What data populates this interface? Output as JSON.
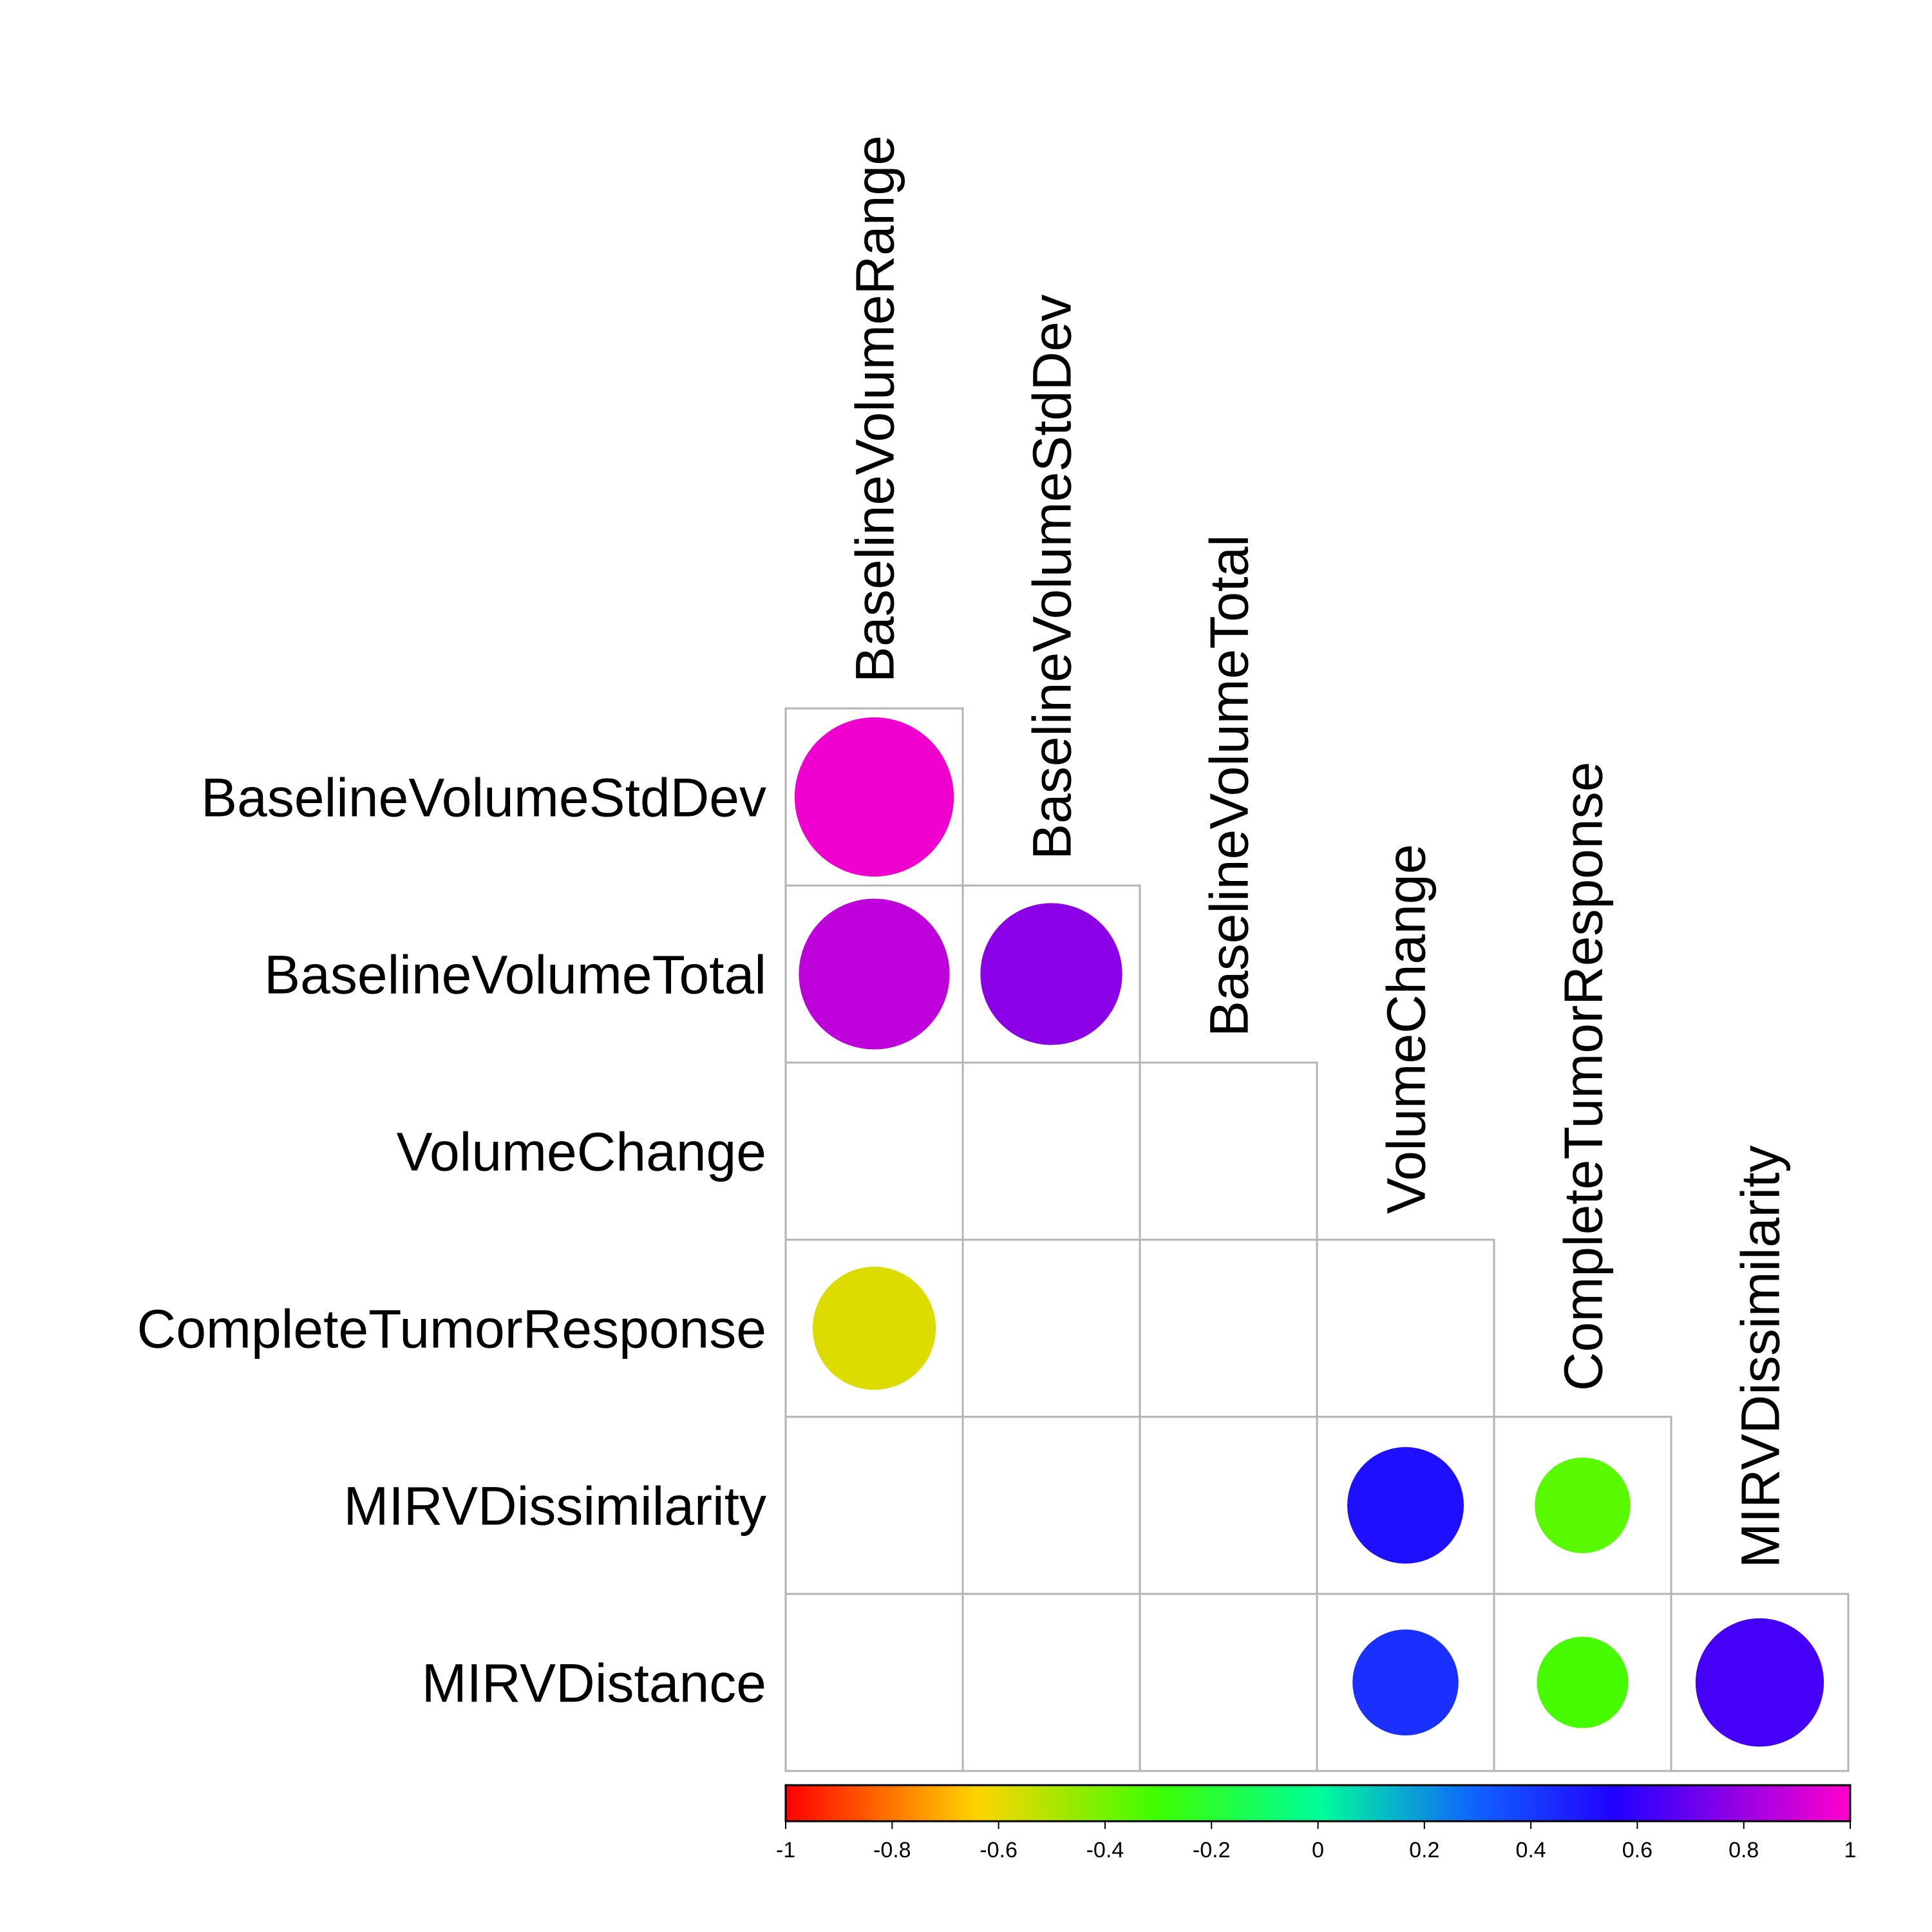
{
  "chart_data": {
    "type": "heatmap",
    "subtype": "correlation-lower-triangle-circles",
    "title": "",
    "column_labels": [
      "BaselineVolumeRange",
      "BaselineVolumeStdDev",
      "BaselineVolumeTotal",
      "VolumeChange",
      "CompleteTumorResponse",
      "MIRVDissimilarity"
    ],
    "row_labels": [
      "BaselineVolumeStdDev",
      "BaselineVolumeTotal",
      "VolumeChange",
      "CompleteTumorResponse",
      "MIRVDissimilarity",
      "MIRVDistance"
    ],
    "values": [
      [
        0.97,
        null,
        null,
        null,
        null,
        null
      ],
      [
        0.87,
        0.77,
        null,
        null,
        null,
        null
      ],
      [
        null,
        null,
        null,
        null,
        null,
        null
      ],
      [
        -0.58,
        null,
        null,
        null,
        null,
        null
      ],
      [
        null,
        null,
        null,
        0.52,
        -0.35,
        null
      ],
      [
        null,
        null,
        null,
        0.43,
        -0.32,
        0.63
      ]
    ],
    "values_note_columns": "values[r][c] maps row_labels[r] to column_labels[c]; blank cells are null",
    "color_scale": {
      "min": -1,
      "max": 1,
      "ticks": [
        "-1",
        "-0.8",
        "-0.6",
        "-0.4",
        "-0.2",
        "0",
        "0.2",
        "0.4",
        "0.6",
        "0.8",
        "1"
      ],
      "colors": [
        "#ff0000",
        "#ffd400",
        "#3cff00",
        "#00ff99",
        "#1060ff",
        "#2200ff",
        "#ff00cc"
      ]
    },
    "grid": true,
    "legend": "bottom colorbar"
  }
}
